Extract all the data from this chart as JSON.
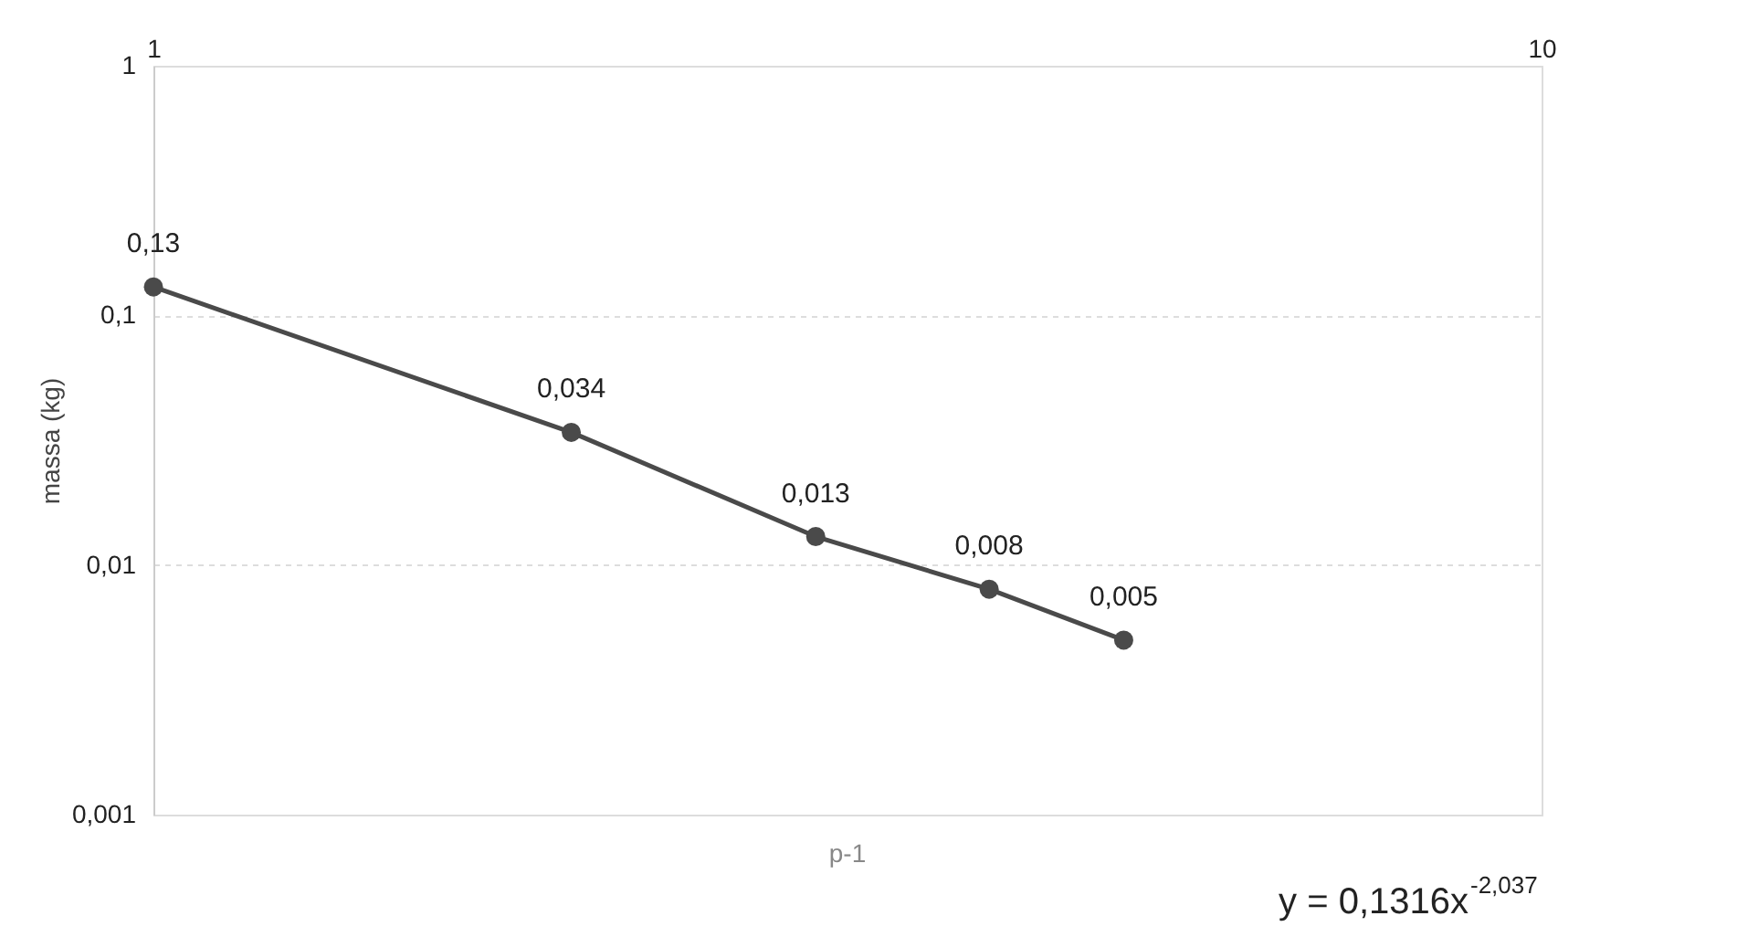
{
  "chart_data": {
    "type": "line",
    "xlabel": "p-1",
    "ylabel": "massa (kg)",
    "x": [
      1,
      2,
      3,
      4,
      5
    ],
    "series": [
      {
        "color": "#4a4a4a",
        "values": [
          0.13,
          0.034,
          0.013,
          0.008,
          0.005
        ],
        "value_labels": [
          "0,13",
          "0,034",
          "0,013",
          "0,008",
          "0,005"
        ]
      }
    ],
    "log": "xy",
    "xlim": [
      1,
      10
    ],
    "xticks": [
      1,
      10
    ],
    "ylim": [
      0.001,
      1
    ],
    "yticks": [
      1,
      {
        "value": 0.1,
        "label": "0,1"
      },
      {
        "value": 0.01,
        "label": "0,01"
      },
      {
        "value": 0.001,
        "label": "0,001"
      }
    ],
    "grid": "y",
    "marker": "circle",
    "line_style": "solid",
    "annotations": [
      "y = 0,1316x$^{-2,037}$"
    ]
  }
}
